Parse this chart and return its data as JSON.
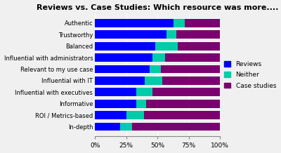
{
  "title": "Reviews vs. Case Studies: Which resource was more....",
  "categories": [
    "Authentic",
    "Trustworthy",
    "Balanced",
    "Influential with administrators",
    "Relevant to my use case",
    "Influential with IT",
    "Influential with executives",
    "Informative",
    "ROI / Metrics-based",
    "In-depth"
  ],
  "reviews": [
    63,
    57,
    48,
    46,
    44,
    40,
    33,
    33,
    25,
    20
  ],
  "neither": [
    9,
    8,
    18,
    10,
    9,
    14,
    13,
    8,
    14,
    10
  ],
  "case_studies": [
    28,
    35,
    34,
    44,
    47,
    46,
    54,
    59,
    61,
    70
  ],
  "colors": {
    "reviews": "#0000FF",
    "neither": "#00CCAA",
    "case_studies": "#7B0070"
  },
  "legend_labels": [
    "Reviews",
    "Neither",
    "Case studies"
  ],
  "xlim": [
    0,
    100
  ],
  "xticks": [
    0,
    25,
    50,
    75,
    100
  ],
  "xticklabels": [
    "0%",
    "25%",
    "50%",
    "75%",
    "100%"
  ],
  "figsize": [
    4.0,
    2.18
  ],
  "dpi": 100,
  "title_fontsize": 8,
  "label_fontsize": 6,
  "tick_fontsize": 6.5,
  "legend_fontsize": 6.5,
  "bar_height": 0.72,
  "bg_color": "#F0F0F0"
}
